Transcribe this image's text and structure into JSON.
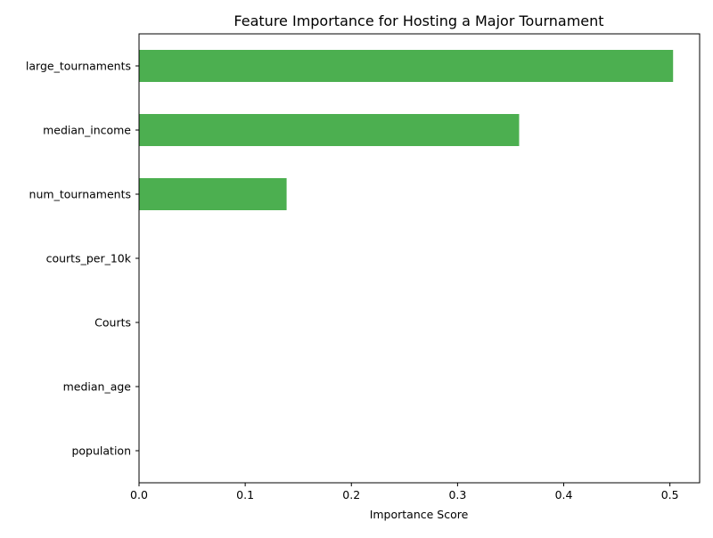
{
  "chart_data": {
    "type": "bar",
    "orientation": "horizontal",
    "title": "Feature Importance for Hosting a Major Tournament",
    "xlabel": "Importance Score",
    "ylabel": "",
    "categories": [
      "large_tournaments",
      "median_income",
      "num_tournaments",
      "courts_per_10k",
      "Courts",
      "median_age",
      "population"
    ],
    "values": [
      0.503,
      0.358,
      0.139,
      0.0,
      0.0,
      0.0,
      0.0
    ],
    "xlim": [
      0,
      0.528
    ],
    "xticks": [
      0.0,
      0.1,
      0.2,
      0.3,
      0.4,
      0.5
    ],
    "xtick_labels": [
      "0.0",
      "0.1",
      "0.2",
      "0.3",
      "0.4",
      "0.5"
    ],
    "grid": false,
    "legend": false,
    "bar_color": "#4caf50"
  }
}
